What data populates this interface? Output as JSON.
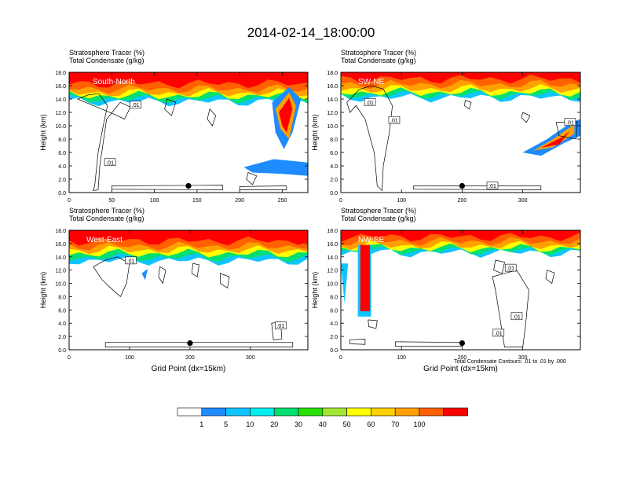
{
  "title": "2014-02-14_18:00:00",
  "colors": {
    "levels": [
      "#ffffff",
      "#1e8cff",
      "#10c4ff",
      "#00eeee",
      "#00e070",
      "#28e000",
      "#a0e632",
      "#ffff00",
      "#ffd000",
      "#ffa000",
      "#ff6000",
      "#ff0000"
    ],
    "contour": "#000000"
  },
  "colorbar": {
    "labels": [
      "1",
      "5",
      "10",
      "20",
      "30",
      "40",
      "50",
      "60",
      "70",
      "100"
    ]
  },
  "footnote": "Total Condensate Contours: .01 to .01 by .000",
  "chart_data": [
    {
      "type": "heatmap",
      "title": "Stratosphere Tracer   (%)",
      "subtitle": "Total Condensate   (g/kg)",
      "panel_label": "South-North",
      "ylabel": "Height (km)",
      "xlabel": "",
      "xticks": [
        "0",
        "50",
        "100",
        "150",
        "200",
        "250"
      ],
      "yticks": [
        "0.0",
        "2.0",
        "4.0",
        "6.0",
        "8.0",
        "10.0",
        "12.0",
        "14.0",
        "16.0",
        "18.0"
      ],
      "xlim": [
        0,
        280
      ],
      "ylim": [
        0,
        18
      ],
      "contour_labels": [
        ".01",
        ".01"
      ],
      "marker_x": 140
    },
    {
      "type": "heatmap",
      "title": "Stratosphere Tracer   (%)",
      "subtitle": "Total Condensate   (g/kg)",
      "panel_label": "SW-NE",
      "ylabel": "Height (km)",
      "xlabel": "",
      "xticks": [
        "0",
        "100",
        "200",
        "300"
      ],
      "yticks": [
        "0.0",
        "2.0",
        "4.0",
        "6.0",
        "8.0",
        "10.0",
        "12.0",
        "14.0",
        "16.0",
        "18.0"
      ],
      "xlim": [
        0,
        395
      ],
      "ylim": [
        0,
        18
      ],
      "contour_labels": [
        ".01",
        ".01",
        ".01",
        ".01"
      ],
      "marker_x": 200
    },
    {
      "type": "heatmap",
      "title": "Stratosphere Tracer   (%)",
      "subtitle": "Total Condensate   (g/kg)",
      "panel_label": "West-East",
      "ylabel": "Height (km)",
      "xlabel": "Grid Point (dx=15km)",
      "xticks": [
        "0",
        "100",
        "200",
        "300"
      ],
      "yticks": [
        "0.0",
        "2.0",
        "4.0",
        "6.0",
        "8.0",
        "10.0",
        "12.0",
        "14.0",
        "16.0",
        "18.0"
      ],
      "xlim": [
        0,
        395
      ],
      "ylim": [
        0,
        18
      ],
      "contour_labels": [
        ".01",
        ".01"
      ],
      "marker_x": 200
    },
    {
      "type": "heatmap",
      "title": "Stratosphere Tracer   (%)",
      "subtitle": "Total Condensate   (g/kg)",
      "panel_label": "NW-SE",
      "ylabel": "Height (km)",
      "xlabel": "Grid Point (dx=15km)",
      "xticks": [
        "0",
        "100",
        "200",
        "300"
      ],
      "yticks": [
        "0.0",
        "2.0",
        "4.0",
        "6.0",
        "8.0",
        "10.0",
        "12.0",
        "14.0",
        "16.0",
        "18.0"
      ],
      "xlim": [
        0,
        395
      ],
      "ylim": [
        0,
        18
      ],
      "contour_labels": [
        ".01",
        ".01",
        ".01"
      ],
      "marker_x": 200
    }
  ]
}
